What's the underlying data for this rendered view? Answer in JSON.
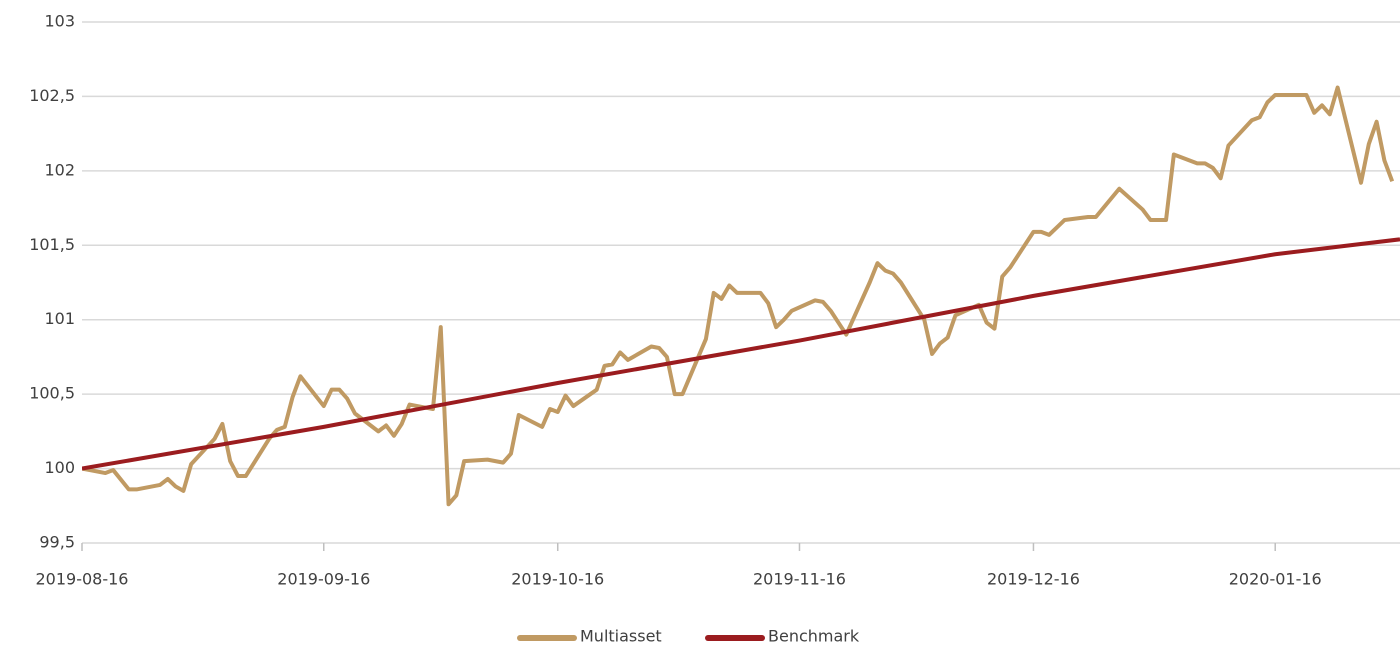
{
  "chart_data": {
    "type": "line",
    "xlim": [
      "2019-08-16",
      "2020-02-01"
    ],
    "xticks": [
      "2019-08-16",
      "2019-09-16",
      "2019-10-16",
      "2019-11-16",
      "2019-12-16",
      "2020-01-16"
    ],
    "ylim": [
      99.5,
      103
    ],
    "yticks": [
      {
        "value": 99.5,
        "label": "99,5"
      },
      100,
      {
        "value": 100.5,
        "label": "100,5"
      },
      101,
      {
        "value": 101.5,
        "label": "101,5"
      },
      102,
      {
        "value": 102.5,
        "label": "102,5"
      },
      103
    ],
    "grid": true,
    "legend": "bottom",
    "series": [
      {
        "name": "Multiasset",
        "color": "#c09a63",
        "x": [
          "2019-08-16",
          "2019-08-19",
          "2019-08-20",
          "2019-08-22",
          "2019-08-23",
          "2019-08-26",
          "2019-08-27",
          "2019-08-28",
          "2019-08-29",
          "2019-08-30",
          "2019-09-02",
          "2019-09-03",
          "2019-09-04",
          "2019-09-05",
          "2019-09-06",
          "2019-09-09",
          "2019-09-10",
          "2019-09-11",
          "2019-09-12",
          "2019-09-13",
          "2019-09-16",
          "2019-09-17",
          "2019-09-18",
          "2019-09-19",
          "2019-09-20",
          "2019-09-23",
          "2019-09-24",
          "2019-09-25",
          "2019-09-26",
          "2019-09-27",
          "2019-09-30",
          "2019-10-01",
          "2019-10-02",
          "2019-10-03",
          "2019-10-04",
          "2019-10-07",
          "2019-10-08",
          "2019-10-09",
          "2019-10-10",
          "2019-10-11",
          "2019-10-14",
          "2019-10-15",
          "2019-10-16",
          "2019-10-17",
          "2019-10-18",
          "2019-10-21",
          "2019-10-22",
          "2019-10-23",
          "2019-10-24",
          "2019-10-25",
          "2019-10-28",
          "2019-10-29",
          "2019-10-30",
          "2019-10-31",
          "2019-11-01",
          "2019-11-04",
          "2019-11-05",
          "2019-11-06",
          "2019-11-07",
          "2019-11-08",
          "2019-11-11",
          "2019-11-12",
          "2019-11-13",
          "2019-11-14",
          "2019-11-15",
          "2019-11-18",
          "2019-11-19",
          "2019-11-20",
          "2019-11-21",
          "2019-11-22",
          "2019-11-25",
          "2019-11-26",
          "2019-11-27",
          "2019-11-28",
          "2019-11-29",
          "2019-12-02",
          "2019-12-03",
          "2019-12-04",
          "2019-12-05",
          "2019-12-06",
          "2019-12-09",
          "2019-12-10",
          "2019-12-11",
          "2019-12-12",
          "2019-12-13",
          "2019-12-16",
          "2019-12-17",
          "2019-12-18",
          "2019-12-19",
          "2019-12-20",
          "2019-12-23",
          "2019-12-24",
          "2019-12-27",
          "2019-12-30",
          "2019-12-31",
          "2020-01-02",
          "2020-01-03",
          "2020-01-06",
          "2020-01-07",
          "2020-01-08",
          "2020-01-09",
          "2020-01-10",
          "2020-01-13",
          "2020-01-14",
          "2020-01-15",
          "2020-01-16",
          "2020-01-17",
          "2020-01-20",
          "2020-01-21",
          "2020-01-22",
          "2020-01-23",
          "2020-01-24",
          "2020-01-27",
          "2020-01-28",
          "2020-01-29",
          "2020-01-30",
          "2020-01-31"
        ],
        "values": [
          100.0,
          99.97,
          99.99,
          99.86,
          99.86,
          99.89,
          99.93,
          99.88,
          99.85,
          100.03,
          100.2,
          100.3,
          100.05,
          99.95,
          99.95,
          100.2,
          100.26,
          100.28,
          100.48,
          100.62,
          100.42,
          100.53,
          100.53,
          100.47,
          100.37,
          100.25,
          100.29,
          100.22,
          100.3,
          100.43,
          100.4,
          100.95,
          99.76,
          99.82,
          100.05,
          100.06,
          100.05,
          100.04,
          100.1,
          100.36,
          100.28,
          100.4,
          100.38,
          100.49,
          100.42,
          100.53,
          100.69,
          100.7,
          100.78,
          100.73,
          100.82,
          100.81,
          100.75,
          100.5,
          100.5,
          100.87,
          101.18,
          101.14,
          101.23,
          101.18,
          101.18,
          101.11,
          100.95,
          101.0,
          101.06,
          101.13,
          101.12,
          101.06,
          100.98,
          100.9,
          101.25,
          101.38,
          101.33,
          101.31,
          101.25,
          101.0,
          100.77,
          100.84,
          100.88,
          101.03,
          101.1,
          100.98,
          100.94,
          101.29,
          101.35,
          101.59,
          101.59,
          101.57,
          101.62,
          101.67,
          101.69,
          101.69,
          101.88,
          101.74,
          101.67,
          101.67,
          102.11,
          102.05,
          102.05,
          102.02,
          101.95,
          102.17,
          102.34,
          102.36,
          102.46,
          102.51,
          102.51,
          102.51,
          102.39,
          102.44,
          102.38,
          102.56,
          101.92,
          102.18,
          102.33,
          102.07,
          101.93
        ]
      },
      {
        "name": "Benchmark",
        "color": "#9b1c1f",
        "x": [
          "2019-08-16",
          "2019-09-16",
          "2019-10-16",
          "2019-11-16",
          "2019-12-16",
          "2020-01-16",
          "2020-02-01"
        ],
        "values": [
          100.0,
          100.28,
          100.575,
          100.86,
          101.16,
          101.44,
          101.54
        ]
      }
    ]
  }
}
